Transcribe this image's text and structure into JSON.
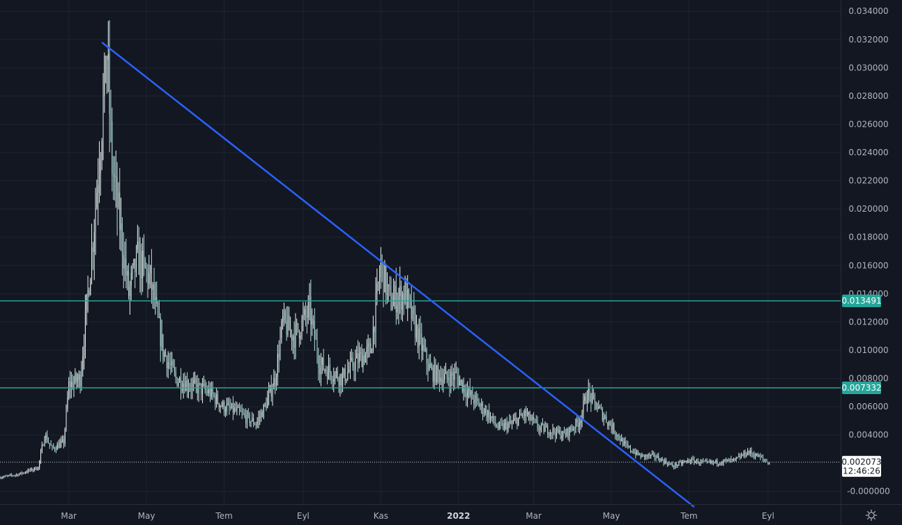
{
  "chart_data": {
    "type": "candlestick",
    "y_ticks": [
      "0.034000",
      "0.032000",
      "0.030000",
      "0.028000",
      "0.026000",
      "0.024000",
      "0.022000",
      "0.020000",
      "0.018000",
      "0.016000",
      "0.014000",
      "0.012000",
      "0.010000",
      "0.008000",
      "0.006000",
      "0.004000",
      "-0.000000"
    ],
    "y_tick_values": [
      0.034,
      0.032,
      0.03,
      0.028,
      0.026,
      0.024,
      0.022,
      0.02,
      0.018,
      0.016,
      0.014,
      0.012,
      0.01,
      0.008,
      0.006,
      0.004,
      0.0
    ],
    "ylim": [
      -0.0009,
      0.0348
    ],
    "x_ticks": [
      {
        "label": "Mar",
        "x": "2021-03-01",
        "bold": false
      },
      {
        "label": "May",
        "x": "2021-05-01",
        "bold": false
      },
      {
        "label": "Tem",
        "x": "2021-07-01",
        "bold": false
      },
      {
        "label": "Eyl",
        "x": "2021-09-01",
        "bold": false
      },
      {
        "label": "Kas",
        "x": "2021-11-01",
        "bold": false
      },
      {
        "label": "2022",
        "x": "2022-01-01",
        "bold": true
      },
      {
        "label": "Mar",
        "x": "2022-03-01",
        "bold": false
      },
      {
        "label": "May",
        "x": "2022-05-01",
        "bold": false
      },
      {
        "label": "Tem",
        "x": "2022-07-01",
        "bold": false
      },
      {
        "label": "Eyl",
        "x": "2022-09-01",
        "bold": false
      }
    ],
    "xlim": [
      "2021-01-06",
      "2022-10-28"
    ],
    "series": [
      {
        "anchors": [
          [
            "2021-01-06",
            0.001
          ],
          [
            "2021-01-20",
            0.0012
          ],
          [
            "2021-02-05",
            0.0017
          ],
          [
            "2021-02-10",
            0.004
          ],
          [
            "2021-02-16",
            0.003
          ],
          [
            "2021-02-25",
            0.0035
          ],
          [
            "2021-03-01",
            0.0075
          ],
          [
            "2021-03-10",
            0.008
          ],
          [
            "2021-03-20",
            0.018
          ],
          [
            "2021-03-26",
            0.025
          ],
          [
            "2021-03-31",
            0.031
          ],
          [
            "2021-04-04",
            0.023
          ],
          [
            "2021-04-10",
            0.019
          ],
          [
            "2021-04-17",
            0.014
          ],
          [
            "2021-04-24",
            0.0165
          ],
          [
            "2021-05-04",
            0.015
          ],
          [
            "2021-05-14",
            0.01
          ],
          [
            "2021-05-24",
            0.008
          ],
          [
            "2021-06-05",
            0.0075
          ],
          [
            "2021-06-20",
            0.007
          ],
          [
            "2021-06-30",
            0.006
          ],
          [
            "2021-07-10",
            0.0057
          ],
          [
            "2021-07-26",
            0.0048
          ],
          [
            "2021-08-02",
            0.006
          ],
          [
            "2021-08-10",
            0.008
          ],
          [
            "2021-08-16",
            0.012
          ],
          [
            "2021-08-25",
            0.011
          ],
          [
            "2021-09-06",
            0.0128
          ],
          [
            "2021-09-14",
            0.009
          ],
          [
            "2021-09-22",
            0.0085
          ],
          [
            "2021-10-02",
            0.008
          ],
          [
            "2021-10-12",
            0.0092
          ],
          [
            "2021-10-24",
            0.01
          ],
          [
            "2021-11-01",
            0.016
          ],
          [
            "2021-11-08",
            0.0135
          ],
          [
            "2021-11-20",
            0.014
          ],
          [
            "2021-11-30",
            0.011
          ],
          [
            "2021-12-10",
            0.0085
          ],
          [
            "2021-12-22",
            0.008
          ],
          [
            "2021-12-30",
            0.0082
          ],
          [
            "2022-01-10",
            0.0068
          ],
          [
            "2022-01-24",
            0.0055
          ],
          [
            "2022-02-01",
            0.0045
          ],
          [
            "2022-02-12",
            0.0048
          ],
          [
            "2022-02-22",
            0.0055
          ],
          [
            "2022-03-05",
            0.0045
          ],
          [
            "2022-03-15",
            0.0043
          ],
          [
            "2022-03-25",
            0.004
          ],
          [
            "2022-04-06",
            0.005
          ],
          [
            "2022-04-12",
            0.007
          ],
          [
            "2022-04-22",
            0.0057
          ],
          [
            "2022-05-02",
            0.0045
          ],
          [
            "2022-05-12",
            0.0032
          ],
          [
            "2022-05-24",
            0.0025
          ],
          [
            "2022-06-04",
            0.0025
          ],
          [
            "2022-06-18",
            0.0018
          ],
          [
            "2022-07-02",
            0.0022
          ],
          [
            "2022-07-15",
            0.002
          ],
          [
            "2022-07-25",
            0.0021
          ],
          [
            "2022-08-06",
            0.0022
          ],
          [
            "2022-08-16",
            0.0028
          ],
          [
            "2022-08-24",
            0.0025
          ],
          [
            "2022-09-02",
            0.002
          ]
        ]
      }
    ],
    "trendlines": [
      {
        "color": "#2962ff",
        "from": [
          "2021-03-27",
          0.0318
        ],
        "to": [
          "2022-07-05",
          -0.0011
        ]
      }
    ],
    "horizontal_levels": [
      {
        "value": 0.013491,
        "label": "0.013491",
        "color": "#26a69a"
      },
      {
        "value": 0.007332,
        "label": "0.007332",
        "color": "#26a69a"
      }
    ],
    "last_price": {
      "value": 0.002073,
      "label": "0.002073",
      "countdown": "12:46:26"
    },
    "colors": {
      "background": "#131722",
      "grid": "#1f2433",
      "candle": "#b2dfdb",
      "bright_candle": "#e8f5f2",
      "axis_text": "#b2b5be"
    },
    "grid": true
  },
  "settings": {
    "icon": "gear-icon"
  }
}
